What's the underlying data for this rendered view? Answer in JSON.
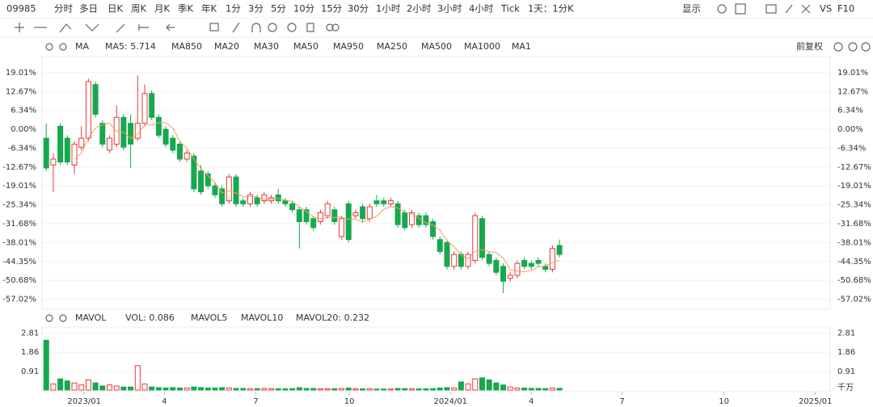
{
  "toolbar": {
    "code": "09985",
    "periods": [
      "分时",
      "多日",
      "日K",
      "周K",
      "月K",
      "季K",
      "年K",
      "1分",
      "3分",
      "5分",
      "10分",
      "15分",
      "30分",
      "1小时",
      "2小时",
      "3小时",
      "4小时",
      "Tick",
      "1天：1分K"
    ],
    "active": "周K",
    "display": "显示",
    "vs": "VS",
    "f10": "F10"
  },
  "chart_data": {
    "type": "candlestick",
    "legend": {
      "name": "MA",
      "ma5": "MA5: 5.714",
      "others": [
        "MA850",
        "MA20",
        "MA30",
        "MA50",
        "MA950",
        "MA250",
        "MA500",
        "MA1000",
        "MA1"
      ],
      "adjust": "前复权"
    },
    "up_color": "#e8383d",
    "down_color": "#17a84f",
    "ma5_color": "#f0a060",
    "open": [
      -3,
      -12,
      1,
      -3,
      -12,
      -6,
      -3,
      15,
      2,
      -7,
      -5,
      4,
      2,
      -3,
      2,
      12,
      4,
      0,
      -3,
      -5,
      -10,
      -9,
      -14,
      -15,
      -19,
      -20,
      -24,
      -16,
      -24,
      -25,
      -23,
      -24,
      -24,
      -22,
      -24,
      -25,
      -27,
      -27,
      -30,
      -31,
      -29,
      -27,
      -36,
      -25,
      -29,
      -26,
      -30,
      -24,
      -24,
      -25,
      -25,
      -28,
      -32,
      -29,
      -29,
      -31,
      -37,
      -38,
      -46,
      -42,
      -46,
      -44,
      -30,
      -42,
      -44,
      -46,
      -50,
      -49,
      -44,
      -45,
      -44,
      -46,
      -47,
      -39
    ],
    "high": [
      2,
      -8,
      2,
      -2,
      -4,
      1,
      17,
      16,
      3,
      -2,
      8,
      5,
      5,
      18,
      15,
      13,
      5,
      1,
      -2,
      -4,
      -7,
      -8,
      -12,
      -14,
      -18,
      -19,
      -15,
      -15,
      -23,
      -21,
      -22,
      -21,
      -22,
      -20,
      -23,
      -24,
      -26,
      -26,
      -29,
      -27,
      -24,
      -26,
      -29,
      -24,
      -27,
      -25,
      -25,
      -22,
      -23,
      -23,
      -24,
      -27,
      -27,
      -28,
      -28,
      -30,
      -36,
      -37,
      -41,
      -41,
      -41,
      -28,
      -29,
      -41,
      -43,
      -45,
      -48,
      -44,
      -43,
      -44,
      -43,
      -45,
      -39,
      -37
    ],
    "low": [
      -14,
      -21,
      -12,
      -12,
      -15,
      -7,
      -4,
      4,
      -6,
      -8,
      -6,
      -7,
      -13,
      -4,
      1,
      3,
      -3,
      -6,
      -8,
      -11,
      -11,
      -21,
      -22,
      -20,
      -23,
      -26,
      -25,
      -26,
      -26,
      -26,
      -26,
      -25,
      -25,
      -25,
      -26,
      -28,
      -40,
      -32,
      -34,
      -32,
      -30,
      -32,
      -37,
      -38,
      -30,
      -31,
      -31,
      -26,
      -26,
      -26,
      -33,
      -34,
      -33,
      -33,
      -33,
      -37,
      -42,
      -47,
      -47,
      -47,
      -47,
      -45,
      -44,
      -46,
      -49,
      -55,
      -51,
      -50,
      -47,
      -47,
      -46,
      -48,
      -48,
      -43
    ],
    "close": [
      -13,
      -10,
      -11,
      -11,
      -5,
      -3,
      16,
      5,
      -5,
      -3,
      4,
      -6,
      -5,
      2,
      12,
      4,
      -2,
      -5,
      -7,
      -10,
      -8,
      -20,
      -21,
      -19,
      -22,
      -25,
      -16,
      -25,
      -25,
      -22,
      -25,
      -22,
      -23,
      -24,
      -25,
      -27,
      -31,
      -31,
      -33,
      -28,
      -25,
      -31,
      -30,
      -37,
      -28,
      -30,
      -26,
      -25,
      -25,
      -24,
      -32,
      -33,
      -28,
      -32,
      -32,
      -36,
      -41,
      -46,
      -42,
      -46,
      -42,
      -29,
      -43,
      -45,
      -48,
      -51,
      -49,
      -45,
      -46,
      -46,
      -45,
      -47,
      -40,
      -42
    ],
    "ma5": [
      null,
      null,
      null,
      null,
      -10,
      -8,
      -2.8,
      0.4,
      1.6,
      2,
      -0.6,
      -1,
      -3,
      -1.6,
      1.4,
      1.4,
      2.2,
      2.2,
      0.4,
      -4,
      -6.4,
      -10,
      -13.2,
      -15.6,
      -18,
      -21.4,
      -20.6,
      -21.4,
      -22.6,
      -22.6,
      -22.6,
      -23.8,
      -23.4,
      -23.2,
      -23.8,
      -24.2,
      -26,
      -27.6,
      -29.4,
      -30,
      -29.6,
      -29.6,
      -29.4,
      -30.2,
      -30.2,
      -31.2,
      -30.2,
      -29.2,
      -26.8,
      -26,
      -26.4,
      -27.8,
      -28.4,
      -29.8,
      -31.4,
      -32.2,
      -33.8,
      -37.4,
      -39.4,
      -42.2,
      -43.4,
      -41,
      -40.4,
      -41,
      -41.4,
      -43.2,
      -47.2,
      -47.6,
      -47.8,
      -47.4,
      -46.2,
      -45.8,
      -44.8,
      -44
    ],
    "ylim": [
      -60.4,
      24.4
    ],
    "yticks": [
      {
        "value": 19.01,
        "label": "19.01%"
      },
      {
        "value": 12.67,
        "label": "12.67%"
      },
      {
        "value": 6.34,
        "label": "6.34%"
      },
      {
        "value": 0,
        "label": "0.00%"
      },
      {
        "value": -6.34,
        "label": "-6.34%"
      },
      {
        "value": -12.67,
        "label": "-12.67%"
      },
      {
        "value": -19.01,
        "label": "-19.01%"
      },
      {
        "value": -25.34,
        "label": "-25.34%"
      },
      {
        "value": -31.68,
        "label": "-31.68%"
      },
      {
        "value": -38.01,
        "label": "-38.01%"
      },
      {
        "value": -44.35,
        "label": "-44.35%"
      },
      {
        "value": -50.68,
        "label": "-50.68%"
      },
      {
        "value": -57.02,
        "label": "-57.02%"
      }
    ],
    "xlim": [
      -0.6,
      111.5
    ],
    "xticks": [
      {
        "value": 5.4,
        "label": "2023/01"
      },
      {
        "value": 16.8,
        "label": "4"
      },
      {
        "value": 29.8,
        "label": "7"
      },
      {
        "value": 43.1,
        "label": "10"
      },
      {
        "value": 57.5,
        "label": "2024/01"
      },
      {
        "value": 69,
        "label": "4"
      },
      {
        "value": 81.9,
        "label": "7"
      },
      {
        "value": 96.4,
        "label": "10"
      },
      {
        "value": 109.4,
        "label": "2025/01"
      }
    ],
    "volume": {
      "legend": {
        "name": "MAVOL",
        "vol": "VOL: 0.086",
        "mavol5": "MAVOL5",
        "mavol10": "MAVOL10",
        "mavol20": "MAVOL20: 0.232"
      },
      "unit": "千万",
      "values": [
        2.45,
        0.3,
        0.55,
        0.45,
        0.35,
        0.25,
        0.5,
        0.35,
        0.2,
        0.25,
        0.2,
        0.15,
        0.15,
        1.2,
        0.3,
        0.15,
        0.12,
        0.1,
        0.12,
        0.1,
        0.1,
        0.15,
        0.12,
        0.1,
        0.1,
        0.12,
        0.1,
        0.08,
        0.08,
        0.07,
        0.07,
        0.08,
        0.07,
        0.06,
        0.06,
        0.07,
        0.12,
        0.08,
        0.08,
        0.06,
        0.06,
        0.07,
        0.08,
        0.1,
        0.06,
        0.06,
        0.07,
        0.05,
        0.05,
        0.05,
        0.08,
        0.07,
        0.06,
        0.06,
        0.06,
        0.07,
        0.1,
        0.12,
        0.1,
        0.4,
        0.3,
        0.55,
        0.6,
        0.5,
        0.35,
        0.25,
        0.15,
        0.1,
        0.1,
        0.08,
        0.08,
        0.07,
        0.1,
        0.086
      ],
      "ylim": [
        0,
        3.1
      ],
      "yticks": [
        2.81,
        1.86,
        0.91
      ]
    }
  }
}
